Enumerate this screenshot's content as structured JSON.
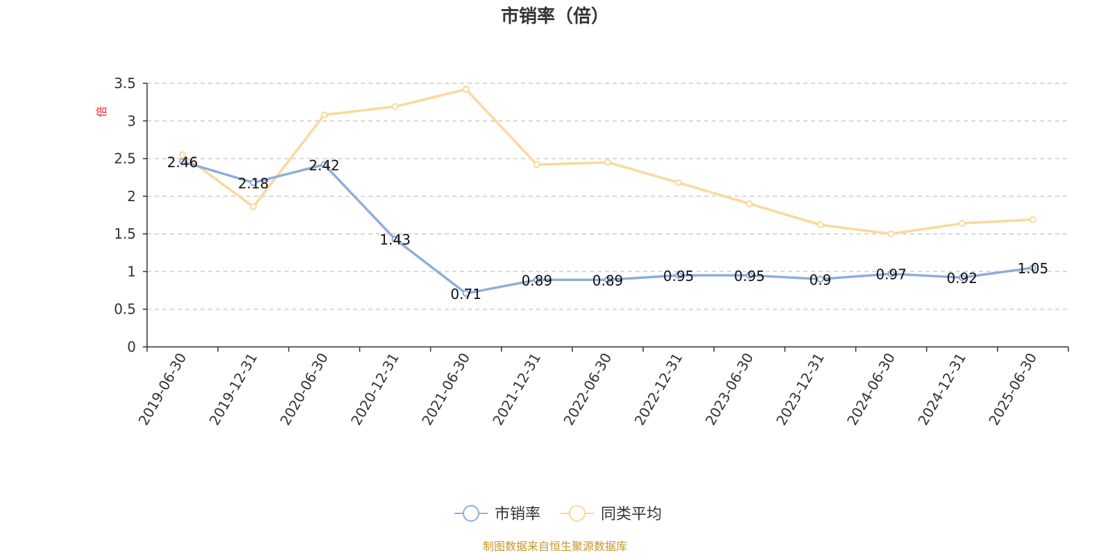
{
  "chart_data": {
    "type": "line",
    "title": "市销率（倍）",
    "ylabel": "倍",
    "xlabel": "",
    "ylim": [
      0,
      3.5
    ],
    "yticks": [
      "0",
      "0.5",
      "1",
      "1.5",
      "2",
      "2.5",
      "3",
      "3.5"
    ],
    "ytick_values": [
      0,
      0.5,
      1,
      1.5,
      2,
      2.5,
      3,
      3.5
    ],
    "grid": true,
    "legend_position": "bottom",
    "categories": [
      "2019-06-30",
      "2019-12-31",
      "2020-06-30",
      "2020-12-31",
      "2021-06-30",
      "2021-12-31",
      "2022-06-30",
      "2022-12-31",
      "2023-06-30",
      "2023-12-31",
      "2024-06-30",
      "2024-12-31",
      "2025-06-30"
    ],
    "series": [
      {
        "name": "市销率",
        "color": "#8eaed9",
        "values": [
          2.46,
          2.18,
          2.42,
          1.43,
          0.71,
          0.89,
          0.89,
          0.95,
          0.95,
          0.9,
          0.97,
          0.92,
          1.05
        ],
        "labels": [
          "2.46",
          "2.18",
          "2.42",
          "1.43",
          "0.71",
          "0.89",
          "0.89",
          "0.95",
          "0.95",
          "0.9",
          "0.97",
          "0.92",
          "1.05"
        ],
        "show_labels": true
      },
      {
        "name": "同类平均",
        "color": "#fbd89a",
        "values": [
          2.55,
          1.86,
          3.08,
          3.19,
          3.42,
          2.42,
          2.45,
          2.18,
          1.9,
          1.62,
          1.5,
          1.64,
          1.69
        ],
        "show_labels": false
      }
    ]
  },
  "source_note": "制图数据来自恒生聚源数据库"
}
